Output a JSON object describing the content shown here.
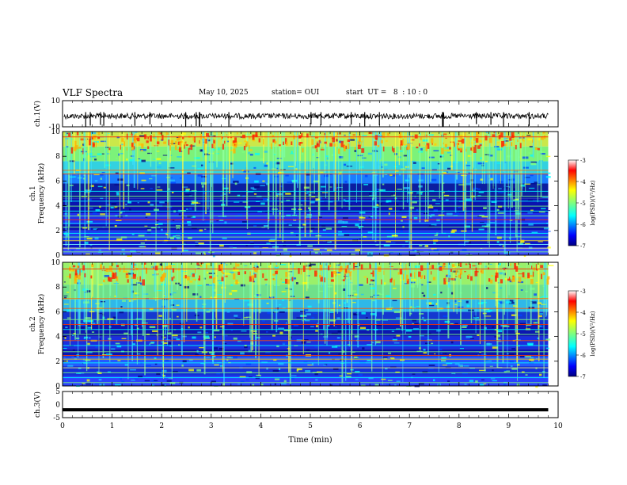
{
  "header": {
    "title": "VLF Spectra",
    "date": "May 10, 2025",
    "station": "station= OUI",
    "start": "start  UT =   8  : 10 : 0"
  },
  "chart_data": [
    {
      "type": "line",
      "panel": "ch1-waveform",
      "ylabel": "ch.1(V)",
      "ylim": [
        -10,
        10
      ],
      "y_ticks": [
        "10",
        "-10"
      ],
      "baseline": 0,
      "xlim": [
        0,
        10
      ]
    },
    {
      "type": "heatmap",
      "panel": "ch1-spectrogram",
      "ylabel_line1": "ch.1",
      "ylabel_line2": "Frequency (kHz)",
      "ylim": [
        0,
        10
      ],
      "y_ticks": [
        0,
        2,
        4,
        6,
        8,
        10
      ],
      "xlim": [
        0,
        9.8
      ],
      "colorbar": {
        "label": "log(PSD)(V²/Hz)",
        "range": [
          -7,
          -3
        ],
        "ticks": [
          "-3",
          "-4",
          "-5",
          "-6",
          "-7"
        ]
      },
      "colormap": [
        "#00007f",
        "#0000ff",
        "#007fff",
        "#00ffff",
        "#7fff7f",
        "#ffff00",
        "#ff7f00",
        "#ff0000",
        "#7f0000"
      ]
    },
    {
      "type": "heatmap",
      "panel": "ch2-spectrogram",
      "ylabel_line1": "ch.2",
      "ylabel_line2": "Frequency (kHz)",
      "ylim": [
        0,
        10
      ],
      "y_ticks": [
        0,
        2,
        4,
        6,
        8,
        10
      ],
      "xlim": [
        0,
        9.8
      ],
      "colorbar": {
        "label": "log(PSD)(V²/Hz)",
        "range": [
          -7,
          -3
        ],
        "ticks": [
          "-3",
          "-4",
          "-5",
          "-6",
          "-7"
        ]
      },
      "colormap": [
        "#00007f",
        "#0000ff",
        "#007fff",
        "#00ffff",
        "#7fff7f",
        "#ffff00",
        "#ff7f00",
        "#ff0000",
        "#7f0000"
      ]
    },
    {
      "type": "line",
      "panel": "ch3-waveform",
      "ylabel": "ch.3(V)",
      "ylim": [
        -5,
        5
      ],
      "y_ticks": [
        "5",
        "0",
        "-5"
      ],
      "baseline": -2,
      "xlim": [
        0,
        9.8
      ]
    }
  ],
  "xaxis": {
    "label": "Time (min)",
    "ticks": [
      "0",
      "1",
      "2",
      "3",
      "4",
      "5",
      "6",
      "7",
      "8",
      "9",
      "10"
    ],
    "range": [
      0,
      10
    ]
  }
}
